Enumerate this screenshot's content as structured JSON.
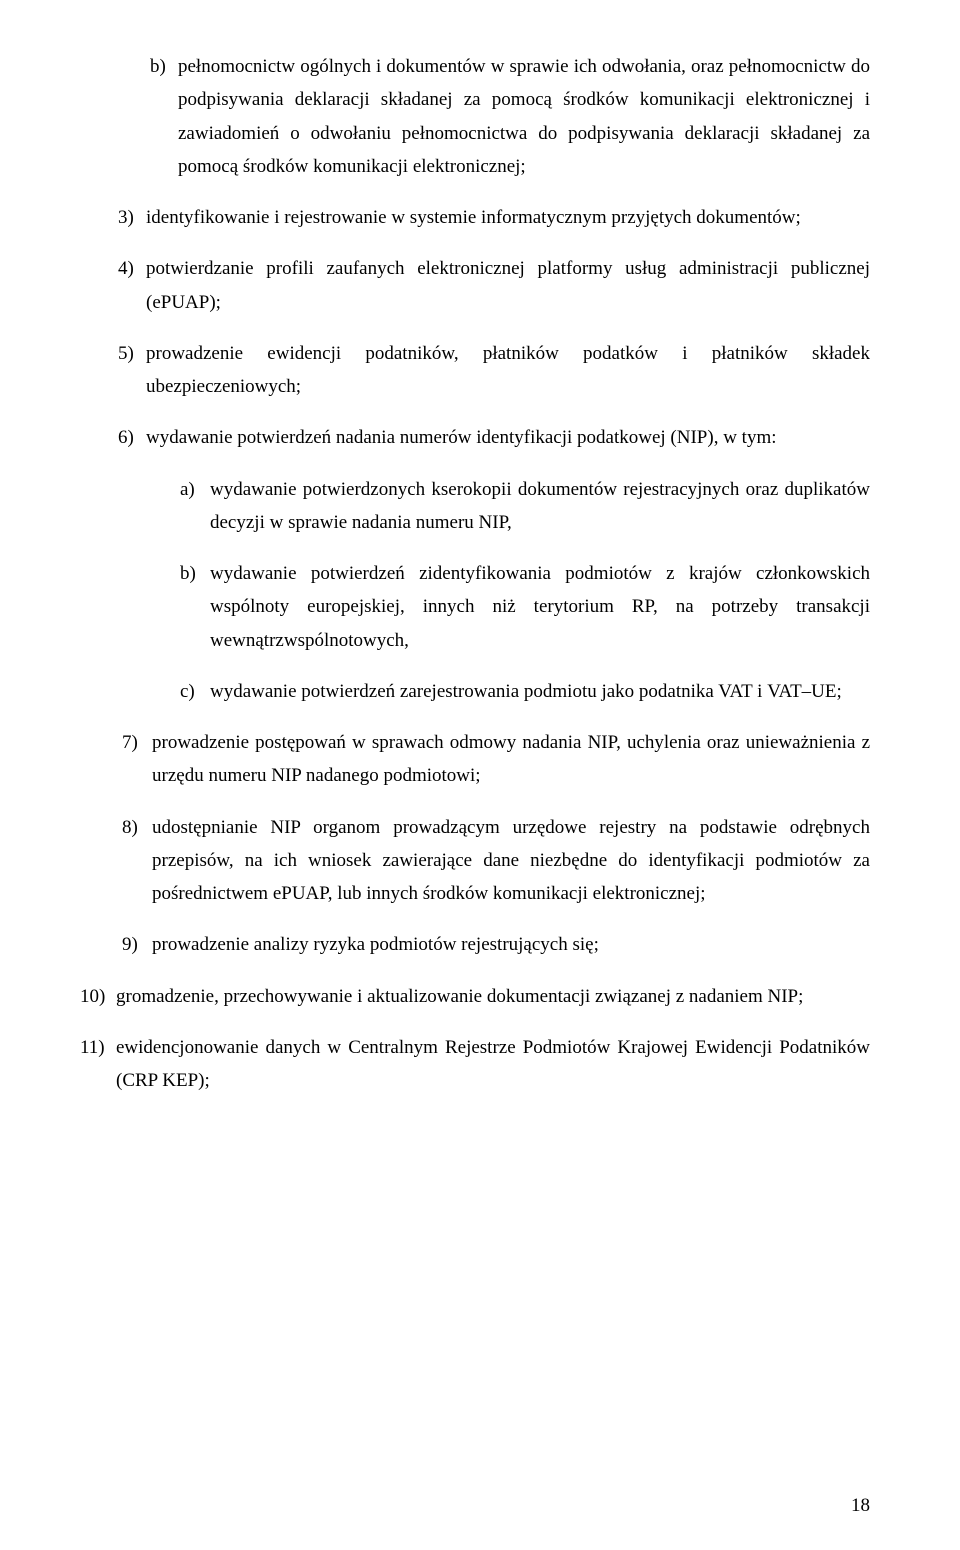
{
  "items": {
    "b1": {
      "marker": "b)",
      "text": "pełnomocnictw ogólnych i dokumentów w sprawie ich odwołania, oraz pełnomocnictw do podpisywania deklaracji składanej za pomocą środków komunikacji elektronicznej i zawiadomień o odwołaniu pełnomocnictwa do podpisywania deklaracji składanej za pomocą środków komunikacji elektronicznej;"
    },
    "n3": {
      "marker": "3)",
      "text": "identyfikowanie i rejestrowanie w systemie informatycznym przyjętych dokumentów;"
    },
    "n4": {
      "marker": "4)",
      "text": "potwierdzanie profili zaufanych elektronicznej platformy usług administracji publicznej (ePUAP);"
    },
    "n5": {
      "marker": "5)",
      "text": "prowadzenie ewidencji podatników, płatników podatków i płatników składek ubezpieczeniowych;"
    },
    "n6": {
      "marker": "6)",
      "text": "wydawanie potwierdzeń nadania numerów identyfikacji podatkowej (NIP), w tym:"
    },
    "sa": {
      "marker": "a)",
      "text": "wydawanie potwierdzonych kserokopii dokumentów rejestracyjnych oraz duplikatów decyzji w sprawie nadania numeru NIP,"
    },
    "sb": {
      "marker": "b)",
      "text": "wydawanie potwierdzeń zidentyfikowania podmiotów z krajów członkowskich wspólnoty europejskiej, innych niż terytorium RP, na potrzeby transakcji wewnątrzwspólnotowych,"
    },
    "sc": {
      "marker": "c)",
      "text": "wydawanie potwierdzeń zarejestrowania podmiotu jako podatnika VAT i VAT–UE;"
    },
    "n7": {
      "marker": "7)",
      "text": "prowadzenie postępowań w sprawach odmowy nadania NIP, uchylenia oraz unieważnienia z urzędu numeru NIP nadanego podmiotowi;"
    },
    "n8": {
      "marker": "8)",
      "text": "udostępnianie NIP organom prowadzącym urzędowe rejestry na podstawie odrębnych przepisów, na ich wniosek zawierające dane niezbędne do identyfikacji podmiotów za pośrednictwem ePUAP, lub innych środków komunikacji elektronicznej;"
    },
    "n9": {
      "marker": "9)",
      "text": "prowadzenie analizy ryzyka podmiotów rejestrujących się;"
    },
    "n10": {
      "marker": "10)",
      "text": "gromadzenie, przechowywanie i aktualizowanie dokumentacji związanej z nadaniem NIP;"
    },
    "n11": {
      "marker": "11)",
      "text": "ewidencjonowanie danych w Centralnym Rejestrze Podmiotów Krajowej Ewidencji Podatników (CRP KEP);"
    }
  },
  "page_number": "18"
}
